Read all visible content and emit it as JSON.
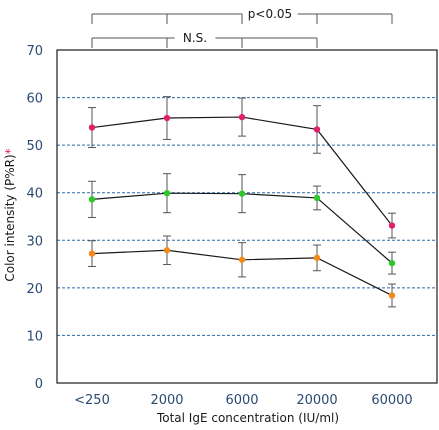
{
  "chart_data": {
    "type": "line",
    "title": "",
    "xlabel": "Total IgE concentration (IU/ml)",
    "ylabel": "Color intensity (P%R)",
    "ylabel_marker": "*",
    "categories": [
      "<250",
      "2000",
      "6000",
      "20000",
      "60000"
    ],
    "ylim": [
      0,
      70
    ],
    "yticks": [
      0,
      10,
      20,
      30,
      40,
      50,
      60,
      70
    ],
    "grid": "horizontal-dashed",
    "series": [
      {
        "color": "#e0206a",
        "values": [
          53.7,
          55.7,
          55.9,
          53.3,
          33.1
        ],
        "errors": [
          4.2,
          4.5,
          4.0,
          5.0,
          2.6
        ]
      },
      {
        "color": "#2ec82a",
        "values": [
          38.6,
          39.9,
          39.8,
          38.9,
          25.2
        ],
        "errors": [
          3.8,
          4.1,
          4.0,
          2.5,
          2.3
        ]
      },
      {
        "color": "#f28a1a",
        "values": [
          27.2,
          27.9,
          25.9,
          26.3,
          18.4
        ],
        "errors": [
          2.7,
          3.0,
          3.6,
          2.7,
          2.4
        ]
      }
    ],
    "significance": [
      {
        "label": "p<0.05",
        "groups": [
          0,
          1,
          2,
          3,
          4
        ]
      },
      {
        "label": "N.S.",
        "groups": [
          0,
          1,
          2,
          3
        ]
      }
    ]
  },
  "colors": {
    "axis": "#1a1a1a",
    "grid": "#2a6aa8",
    "tick_text": "#2a4a72"
  }
}
